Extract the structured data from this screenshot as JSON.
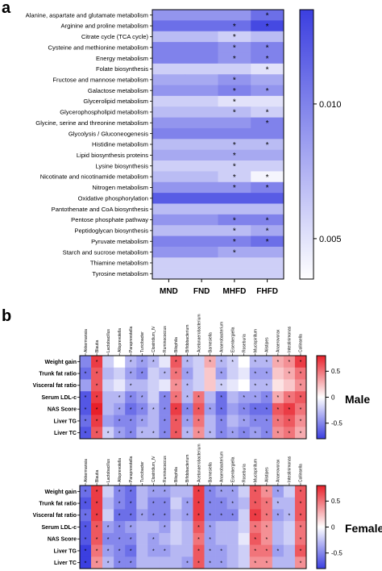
{
  "chart_data": [
    {
      "type": "heatmap",
      "panel": "a",
      "rows": [
        "Alanine, aspartate and glutamate metabolism",
        "Arginine and proline metabolism",
        "Citrate cycle (TCA cycle)",
        "Cysteine and methionine metabolism",
        "Energy metabolism",
        "Folate biosynthesis",
        "Fructose and mannose metabolism",
        "Galactose metabolism",
        "Glycerolipid metabolism",
        "Glycerophospholipid metabolism",
        "Glycine, serine and threonine metabolism",
        "Glycolysis / Gluconeogenesis",
        "Histidine metabolism",
        "Lipid biosynthesis proteins",
        "Lysine biosynthesis",
        "Nicotinate and nicotinamide metabolism",
        "Nitrogen metabolism",
        "Oxidative phosphorylation",
        "Pantothenate and CoA biosynthesis",
        "Pentose phosphate pathway",
        "Peptidoglycan biosynthesis",
        "Pyruvate metabolism",
        "Starch and sucrose metabolism",
        "Thiamine metabolism",
        "Tyrosine metabolism"
      ],
      "columns": [
        "MND",
        "FND",
        "MHFD",
        "FHFD"
      ],
      "values": [
        [
          0.009,
          0.009,
          0.009,
          0.011
        ],
        [
          0.011,
          0.011,
          0.011,
          0.013
        ],
        [
          0.007,
          0.007,
          0.006,
          0.007
        ],
        [
          0.01,
          0.01,
          0.009,
          0.01
        ],
        [
          0.01,
          0.01,
          0.009,
          0.01
        ],
        [
          0.006,
          0.006,
          0.006,
          0.005
        ],
        [
          0.008,
          0.008,
          0.009,
          0.008
        ],
        [
          0.009,
          0.009,
          0.01,
          0.009
        ],
        [
          0.006,
          0.006,
          0.005,
          0.005
        ],
        [
          0.007,
          0.007,
          0.007,
          0.006
        ],
        [
          0.009,
          0.009,
          0.009,
          0.01
        ],
        [
          0.01,
          0.01,
          0.01,
          0.01
        ],
        [
          0.007,
          0.007,
          0.007,
          0.007
        ],
        [
          0.008,
          0.008,
          0.008,
          0.008
        ],
        [
          0.006,
          0.006,
          0.006,
          0.006
        ],
        [
          0.007,
          0.007,
          0.006,
          0.004
        ],
        [
          0.009,
          0.009,
          0.009,
          0.01
        ],
        [
          0.012,
          0.012,
          0.012,
          0.012
        ],
        [
          0.007,
          0.007,
          0.007,
          0.007
        ],
        [
          0.009,
          0.009,
          0.01,
          0.01
        ],
        [
          0.007,
          0.007,
          0.007,
          0.008
        ],
        [
          0.01,
          0.01,
          0.01,
          0.011
        ],
        [
          0.009,
          0.009,
          0.008,
          0.008
        ],
        [
          0.006,
          0.006,
          0.006,
          0.006
        ],
        [
          0.006,
          0.006,
          0.006,
          0.006
        ]
      ],
      "significant": [
        [
          0,
          0,
          0,
          1
        ],
        [
          0,
          0,
          1,
          1
        ],
        [
          0,
          0,
          1,
          0
        ],
        [
          0,
          0,
          1,
          1
        ],
        [
          0,
          0,
          1,
          1
        ],
        [
          0,
          0,
          0,
          1
        ],
        [
          0,
          0,
          1,
          0
        ],
        [
          0,
          0,
          1,
          1
        ],
        [
          0,
          0,
          1,
          0
        ],
        [
          0,
          0,
          1,
          1
        ],
        [
          0,
          0,
          0,
          1
        ],
        [
          0,
          0,
          0,
          0
        ],
        [
          0,
          0,
          1,
          1
        ],
        [
          0,
          0,
          1,
          0
        ],
        [
          0,
          0,
          1,
          0
        ],
        [
          0,
          0,
          1,
          1
        ],
        [
          0,
          0,
          1,
          1
        ],
        [
          0,
          0,
          0,
          0
        ],
        [
          0,
          0,
          0,
          0
        ],
        [
          0,
          0,
          1,
          1
        ],
        [
          0,
          0,
          1,
          1
        ],
        [
          0,
          0,
          1,
          1
        ],
        [
          0,
          0,
          1,
          0
        ],
        [
          0,
          0,
          0,
          0
        ],
        [
          0,
          0,
          0,
          0
        ]
      ],
      "colorbar": {
        "ticks": [
          "0.010",
          "0.005"
        ],
        "tick_values": [
          0.01,
          0.005
        ],
        "min": 0.0035,
        "max": 0.0135,
        "color_low": "#ffffff",
        "color_high": "#3b3fe0"
      },
      "star": "*"
    },
    {
      "type": "heatmap",
      "panel": "b",
      "group": "Male",
      "rows": [
        "Weight gain",
        "Trunk fat ratio",
        "Visceral fat ratio",
        "Serum LDL-c",
        "NAS Score",
        "Liver TG",
        "Liver TC"
      ],
      "columns": [
        "Akkermansia",
        "Blautia",
        "Lactobacillus",
        "Alloprevotella",
        "Paraprevotella",
        "Turicibacter",
        "Clostridium_IV",
        "Ruminococcus",
        "Bilophila",
        "Bifidobacterium",
        "Acetanaerobacterium",
        "Barnesiella",
        "Anaerobacterium",
        "Eisenbergiella",
        "Roseburia",
        "Mucispirillum",
        "Alistipes",
        "Anaerovorax",
        "Intestinimonas",
        "Collinsella"
      ],
      "values": [
        [
          -0.5,
          0.7,
          -0.2,
          0.0,
          -0.3,
          -0.4,
          -0.3,
          -0.1,
          0.6,
          -0.3,
          -0.2,
          0.3,
          -0.3,
          -0.2,
          0.0,
          -0.3,
          -0.3,
          0.3,
          0.4,
          0.7
        ],
        [
          -0.6,
          0.6,
          -0.3,
          -0.2,
          -0.4,
          -0.5,
          -0.2,
          -0.3,
          0.5,
          -0.4,
          -0.2,
          0.2,
          -0.4,
          -0.2,
          -0.1,
          -0.4,
          -0.4,
          0.2,
          0.3,
          0.5
        ],
        [
          -0.4,
          0.6,
          -0.2,
          -0.1,
          -0.3,
          -0.3,
          -0.2,
          -0.1,
          0.4,
          -0.3,
          -0.2,
          0.2,
          -0.2,
          -0.1,
          0.0,
          -0.3,
          -0.3,
          0.1,
          0.2,
          0.4
        ],
        [
          -0.7,
          0.7,
          -0.3,
          -0.3,
          -0.5,
          -0.4,
          -0.2,
          -0.5,
          0.5,
          -0.3,
          0.5,
          -0.3,
          -0.6,
          -0.3,
          -0.4,
          -0.4,
          -0.5,
          0.3,
          0.5,
          0.6
        ],
        [
          -0.7,
          0.8,
          -0.3,
          -0.4,
          -0.6,
          -0.5,
          -0.3,
          -0.5,
          0.7,
          -0.5,
          0.6,
          -0.4,
          -0.6,
          -0.4,
          -0.5,
          -0.6,
          -0.6,
          0.6,
          0.7,
          0.5
        ],
        [
          -0.6,
          0.7,
          -0.4,
          -0.5,
          -0.5,
          -0.4,
          -0.3,
          -0.5,
          0.6,
          -0.4,
          0.5,
          -0.3,
          -0.5,
          -0.3,
          -0.4,
          -0.5,
          -0.5,
          0.5,
          0.6,
          0.4
        ],
        [
          -0.7,
          0.6,
          -0.2,
          -0.4,
          -0.5,
          -0.3,
          -0.3,
          -0.5,
          0.6,
          -0.3,
          0.4,
          -0.3,
          -0.5,
          -0.4,
          -0.5,
          -0.4,
          -0.5,
          0.4,
          0.5,
          0.3
        ]
      ],
      "significant": [
        [
          0,
          1,
          0,
          0,
          1,
          1,
          1,
          0,
          1,
          1,
          0,
          1,
          1,
          1,
          0,
          1,
          1,
          1,
          1,
          1
        ],
        [
          1,
          1,
          0,
          0,
          1,
          1,
          0,
          1,
          1,
          1,
          0,
          0,
          1,
          0,
          0,
          1,
          1,
          0,
          1,
          1
        ],
        [
          0,
          1,
          0,
          0,
          1,
          0,
          0,
          0,
          1,
          1,
          0,
          0,
          1,
          0,
          0,
          1,
          1,
          0,
          0,
          1
        ],
        [
          1,
          1,
          0,
          1,
          1,
          1,
          0,
          1,
          1,
          1,
          1,
          0,
          1,
          0,
          1,
          1,
          1,
          1,
          1,
          1
        ],
        [
          1,
          1,
          0,
          1,
          1,
          1,
          1,
          1,
          1,
          1,
          1,
          1,
          1,
          0,
          1,
          1,
          1,
          1,
          1,
          1
        ],
        [
          1,
          1,
          0,
          1,
          1,
          1,
          0,
          1,
          1,
          1,
          1,
          0,
          1,
          0,
          1,
          1,
          1,
          1,
          1,
          1
        ],
        [
          1,
          1,
          1,
          1,
          1,
          1,
          1,
          1,
          1,
          1,
          1,
          1,
          1,
          1,
          1,
          1,
          1,
          1,
          1,
          1
        ]
      ],
      "colorbar": {
        "ticks": [
          "0.5",
          "0",
          "-0.5"
        ],
        "tick_values": [
          0.5,
          0,
          -0.5
        ],
        "min": -0.8,
        "max": 0.8,
        "color_low": "#3b3fe0",
        "color_mid": "#ffffff",
        "color_high": "#e8202a"
      },
      "star": "*"
    },
    {
      "type": "heatmap",
      "panel": "b",
      "group": "Female",
      "rows": [
        "Weight gain",
        "Trunk fat ratio",
        "Visceral fat ratio",
        "Serum LDL-c",
        "NAS Score",
        "Liver TG",
        "Liver TC"
      ],
      "columns": [
        "Akkermansia",
        "Blautia",
        "Lactobacillus",
        "Alloprevotella",
        "Paraprevotella",
        "Turicibacter",
        "Clostridium_IV",
        "Ruminococcus",
        "Bilophila",
        "Bifidobacterium",
        "Acetanaerobacterium",
        "Barnesiella",
        "Anaerobacterium",
        "Eisenbergiella",
        "Roseburia",
        "Mucispirillum",
        "Alistipes",
        "Anaerovorax",
        "Intestinimonas",
        "Collinsella"
      ],
      "values": [
        [
          -0.6,
          0.7,
          -0.2,
          -0.5,
          -0.6,
          -0.3,
          -0.4,
          -0.4,
          -0.3,
          -0.3,
          0.7,
          -0.5,
          -0.4,
          -0.4,
          -0.2,
          0.6,
          0.4,
          -0.4,
          -0.2,
          0.6
        ],
        [
          -0.7,
          0.7,
          -0.3,
          -0.5,
          -0.6,
          -0.3,
          -0.5,
          -0.5,
          -0.2,
          -0.4,
          0.7,
          -0.5,
          -0.5,
          -0.4,
          -0.3,
          0.6,
          0.5,
          -0.3,
          -0.3,
          0.6
        ],
        [
          -0.6,
          0.7,
          -0.2,
          -0.6,
          -0.6,
          -0.4,
          -0.5,
          -0.5,
          -0.3,
          -0.4,
          0.7,
          -0.5,
          -0.5,
          -0.5,
          -0.2,
          0.7,
          0.5,
          -0.4,
          -0.3,
          0.6
        ],
        [
          -0.7,
          0.6,
          -0.4,
          -0.5,
          -0.4,
          -0.3,
          -0.3,
          -0.4,
          -0.2,
          -0.3,
          0.6,
          -0.4,
          -0.3,
          -0.3,
          -0.2,
          0.5,
          0.4,
          -0.3,
          -0.2,
          0.5
        ],
        [
          -0.7,
          0.6,
          -0.5,
          -0.5,
          -0.5,
          -0.3,
          -0.4,
          -0.3,
          -0.2,
          -0.3,
          0.5,
          -0.4,
          -0.3,
          -0.3,
          -0.1,
          0.6,
          0.4,
          -0.3,
          -0.2,
          0.5
        ],
        [
          -0.8,
          0.5,
          -0.4,
          -0.5,
          -0.6,
          -0.3,
          -0.4,
          -0.4,
          -0.3,
          -0.3,
          0.6,
          -0.4,
          -0.4,
          -0.3,
          -0.2,
          0.5,
          0.5,
          -0.4,
          -0.3,
          0.6
        ],
        [
          -0.8,
          0.4,
          -0.3,
          -0.5,
          -0.5,
          -0.3,
          -0.3,
          -0.3,
          -0.3,
          -0.4,
          0.6,
          -0.4,
          -0.4,
          -0.3,
          -0.2,
          0.4,
          0.4,
          -0.3,
          -0.3,
          0.4
        ]
      ],
      "significant": [
        [
          1,
          1,
          0,
          1,
          1,
          0,
          1,
          1,
          0,
          0,
          1,
          1,
          1,
          1,
          0,
          1,
          1,
          1,
          0,
          1
        ],
        [
          1,
          1,
          0,
          1,
          1,
          0,
          1,
          1,
          0,
          1,
          1,
          1,
          1,
          1,
          0,
          1,
          1,
          1,
          0,
          1
        ],
        [
          1,
          1,
          0,
          1,
          1,
          1,
          1,
          1,
          0,
          1,
          1,
          1,
          1,
          1,
          0,
          1,
          1,
          1,
          1,
          1
        ],
        [
          1,
          1,
          1,
          1,
          1,
          0,
          0,
          1,
          0,
          0,
          1,
          1,
          0,
          0,
          0,
          1,
          1,
          0,
          0,
          1
        ],
        [
          1,
          1,
          1,
          1,
          1,
          0,
          1,
          0,
          0,
          0,
          1,
          1,
          0,
          0,
          0,
          1,
          1,
          0,
          0,
          1
        ],
        [
          1,
          1,
          1,
          1,
          1,
          0,
          1,
          1,
          0,
          0,
          1,
          1,
          1,
          0,
          0,
          1,
          1,
          1,
          0,
          1
        ],
        [
          1,
          1,
          1,
          1,
          1,
          0,
          0,
          0,
          0,
          1,
          1,
          1,
          1,
          0,
          0,
          1,
          1,
          0,
          0,
          1
        ]
      ],
      "colorbar": {
        "ticks": [
          "0.5",
          "0",
          "-0.5"
        ],
        "tick_values": [
          0.5,
          0,
          -0.5
        ],
        "min": -0.8,
        "max": 0.8,
        "color_low": "#3b3fe0",
        "color_mid": "#ffffff",
        "color_high": "#e8202a"
      },
      "star": "*"
    }
  ],
  "labels": {
    "panel_a": "a",
    "panel_b": "b",
    "male": "Male",
    "female": "Female"
  }
}
